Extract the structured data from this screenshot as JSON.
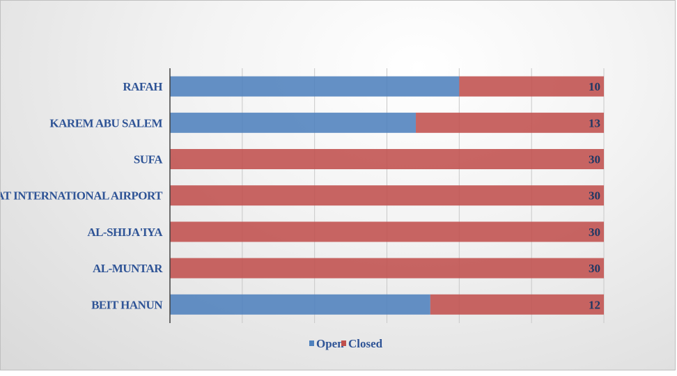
{
  "chart_data": {
    "type": "bar",
    "orientation": "horizontal",
    "stacked": true,
    "categories": [
      "RAFAH",
      "KAREM ABU SALEM",
      "SUFA",
      "YASSER ARAFAT INTERNATIONAL AIRPORT",
      "AL-SHIJA'IYA",
      "AL-MUNTAR",
      "BEIT HANUN"
    ],
    "series": [
      {
        "name": "Open",
        "values": [
          20,
          17,
          0,
          0,
          0,
          0,
          18
        ],
        "color": "#4f81bd"
      },
      {
        "name": "Closed",
        "values": [
          10,
          13,
          30,
          30,
          30,
          30,
          12
        ],
        "color": "#c0504d"
      }
    ],
    "data_labels": [
      "10",
      "13",
      "30",
      "30",
      "30",
      "30",
      "12"
    ],
    "xlim": [
      0,
      30
    ],
    "grid": true,
    "legend_position": "bottom",
    "title": "",
    "xlabel": "",
    "ylabel": ""
  }
}
